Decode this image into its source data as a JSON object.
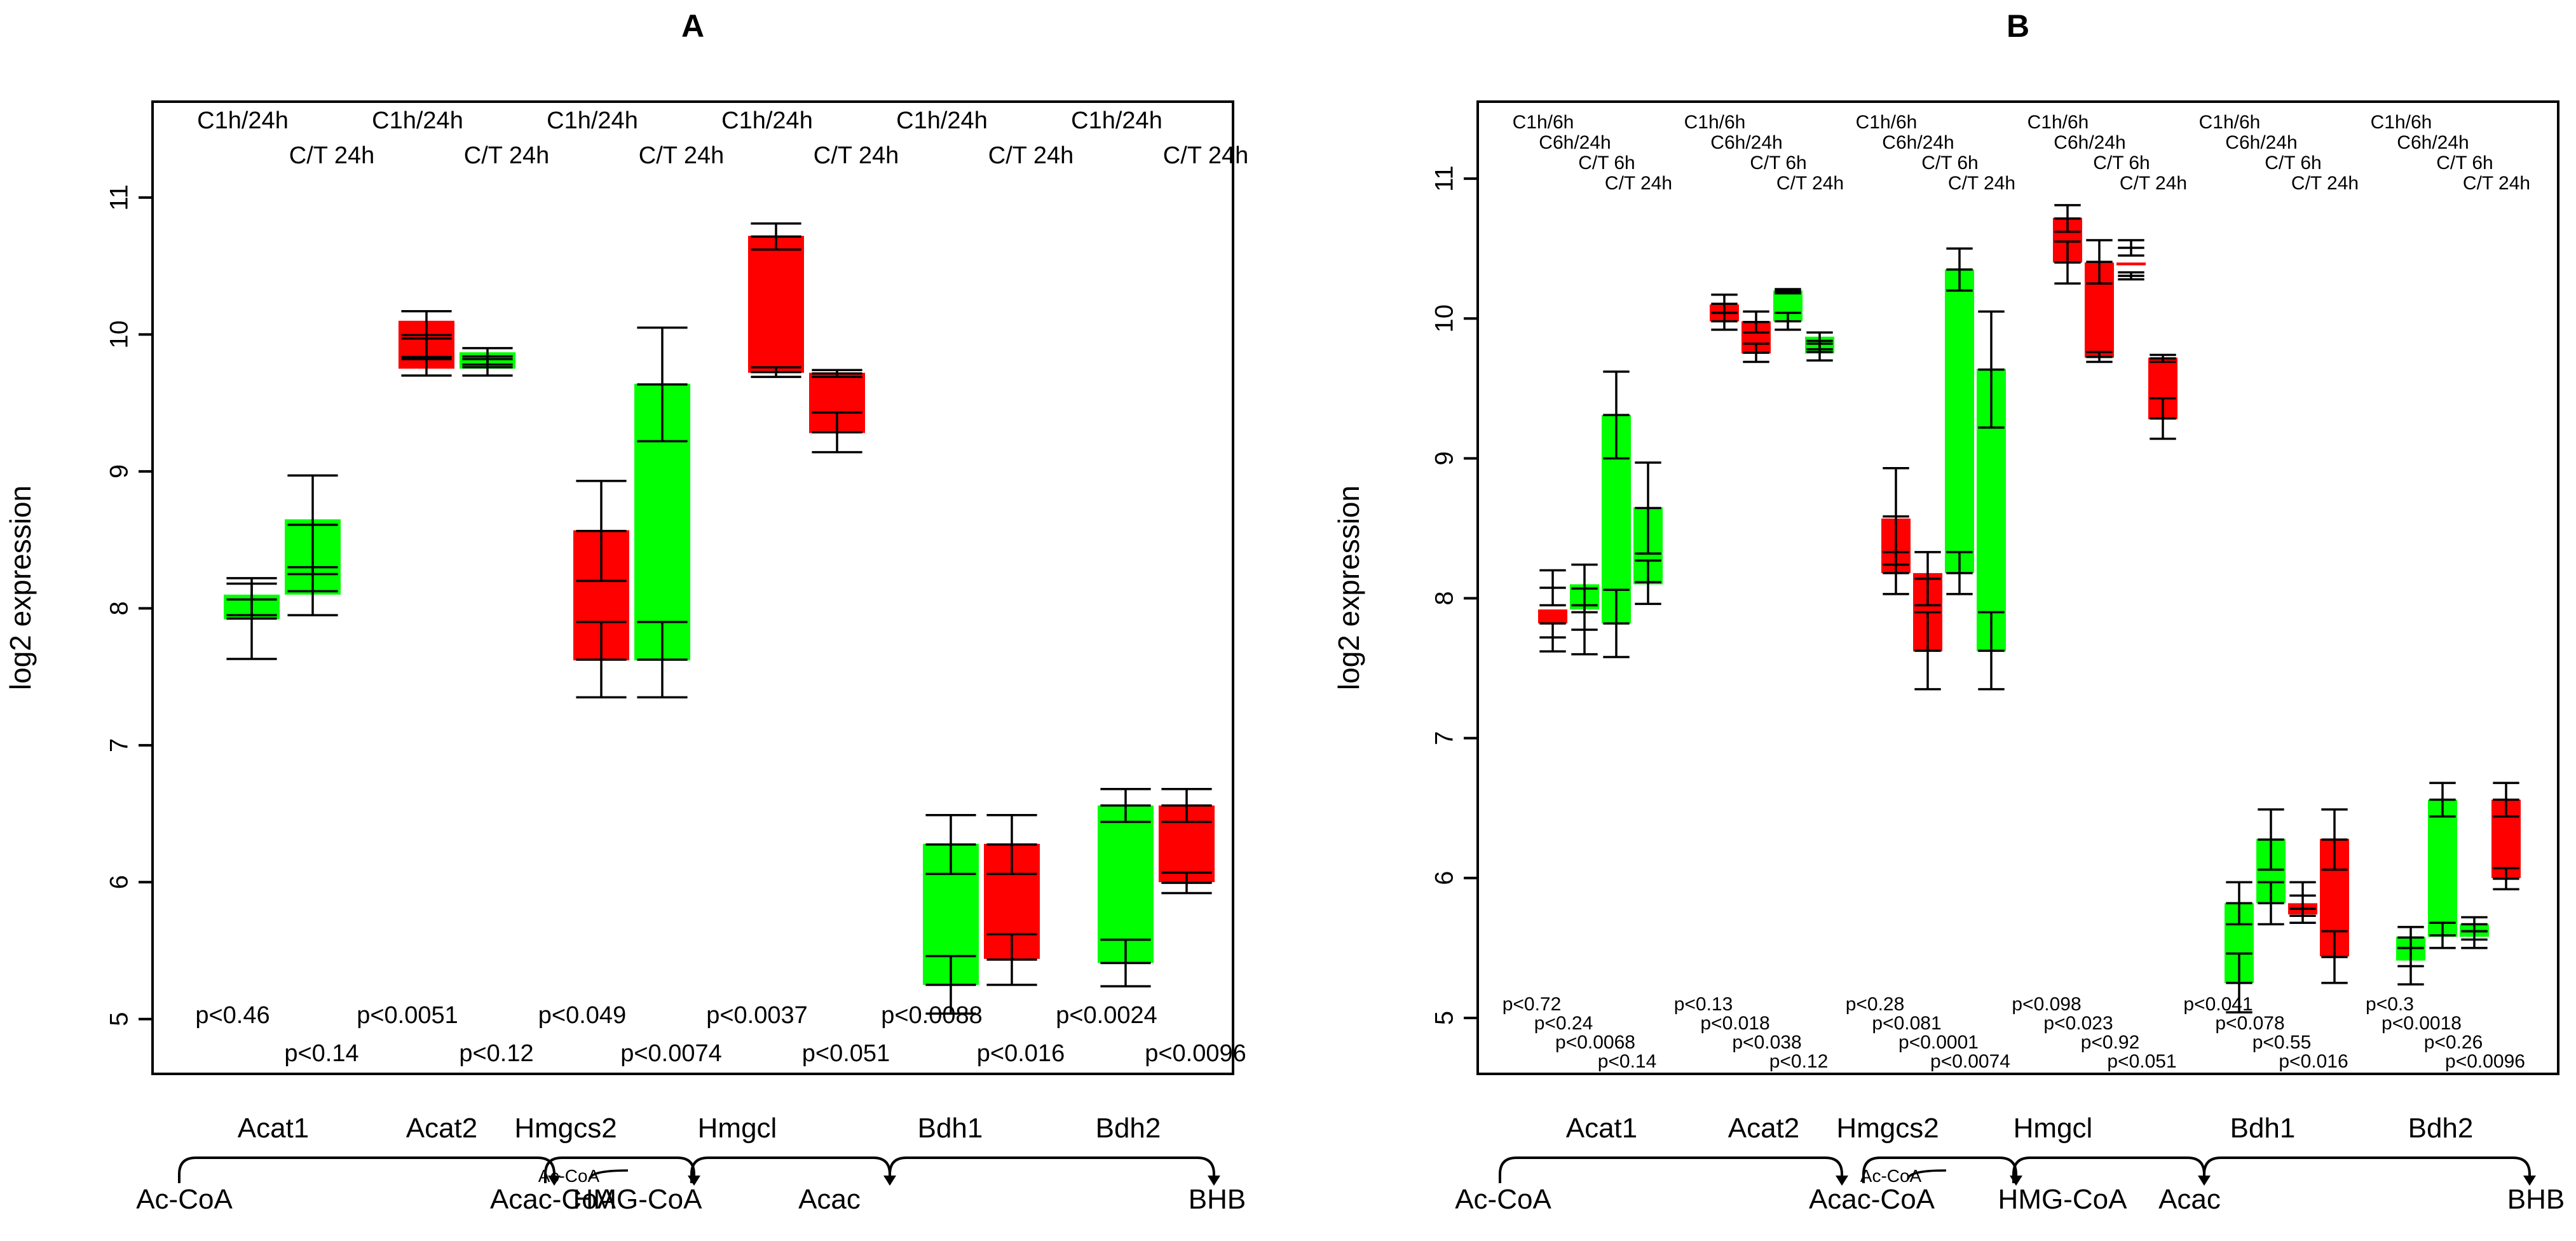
{
  "colors": {
    "up": "#ff0000",
    "down": "#00ff00",
    "ink": "#000000",
    "background": "#ffffff"
  },
  "chart_data": [
    {
      "type": "floating-bar",
      "title": "A",
      "ylabel": "log2 expression",
      "ylim": [
        4.6,
        11.7
      ],
      "yticks": [
        5,
        6,
        7,
        8,
        9,
        10,
        11
      ],
      "group_top_labels": [
        "C1h/24h",
        "C/T 24h"
      ],
      "genes": [
        "Acat1",
        "Acat2",
        "Hmgcs2",
        "Hmgcl",
        "Bdh1",
        "Bdh2"
      ],
      "groups": [
        {
          "gene": "Acat1",
          "bars": [
            {
              "label": "C1h/24h",
              "p": "p<0.46",
              "low": 7.92,
              "high": 8.1,
              "color": "down",
              "err_a": [
                7.63,
                8.22
              ],
              "err_b": [
                7.95,
                8.18
              ]
            },
            {
              "label": "C/T 24h",
              "p": "p<0.14",
              "low": 8.1,
              "high": 8.65,
              "color": "down",
              "err_a": [
                7.95,
                8.3
              ],
              "err_b": [
                8.25,
                8.97
              ]
            }
          ]
        },
        {
          "gene": "Acat2",
          "bars": [
            {
              "label": "C1h/24h",
              "p": "p<0.0051",
              "low": 9.75,
              "high": 10.1,
              "color": "up",
              "err_a": [
                9.7,
                9.97
              ],
              "err_b": [
                9.82,
                10.17
              ]
            },
            {
              "label": "C/T 24h",
              "p": "p<0.12",
              "low": 9.75,
              "high": 9.87,
              "color": "down",
              "err_a": [
                9.7,
                9.82
              ],
              "err_b": [
                9.78,
                9.9
              ]
            }
          ]
        },
        {
          "gene": "Hmgcs2",
          "bars": [
            {
              "label": "C1h/24h",
              "p": "p<0.049",
              "low": 7.62,
              "high": 8.57,
              "color": "up",
              "err_a": [
                7.35,
                7.9
              ],
              "err_b": [
                8.2,
                8.93
              ]
            },
            {
              "label": "C/T 24h",
              "p": "p<0.0074",
              "low": 7.62,
              "high": 9.64,
              "color": "down",
              "err_a": [
                7.35,
                7.9
              ],
              "err_b": [
                9.22,
                10.05
              ]
            }
          ]
        },
        {
          "gene": "Hmgcl",
          "bars": [
            {
              "label": "C1h/24h",
              "p": "p<0.0037",
              "low": 9.72,
              "high": 10.72,
              "color": "up",
              "err_a": [
                9.69,
                9.76
              ],
              "err_b": [
                10.62,
                10.81
              ]
            },
            {
              "label": "C/T 24h",
              "p": "p<0.051",
              "low": 9.28,
              "high": 9.72,
              "color": "up",
              "err_a": [
                9.14,
                9.43
              ],
              "err_b": [
                9.69,
                9.74
              ]
            }
          ]
        },
        {
          "gene": "Bdh1",
          "bars": [
            {
              "label": "C1h/24h",
              "p": "p<0.0088",
              "low": 5.25,
              "high": 6.28,
              "color": "down",
              "err_a": [
                5.04,
                5.46
              ],
              "err_b": [
                6.06,
                6.49
              ]
            },
            {
              "label": "C/T 24h",
              "p": "p<0.016",
              "low": 5.44,
              "high": 6.28,
              "color": "up",
              "err_a": [
                5.25,
                5.62
              ],
              "err_b": [
                6.06,
                6.49
              ]
            }
          ]
        },
        {
          "gene": "Bdh2",
          "bars": [
            {
              "label": "C1h/24h",
              "p": "p<0.0024",
              "low": 5.41,
              "high": 6.56,
              "color": "down",
              "err_a": [
                5.24,
                5.58
              ],
              "err_b": [
                6.44,
                6.68
              ]
            },
            {
              "label": "C/T 24h",
              "p": "p<0.0096",
              "low": 6.0,
              "high": 6.56,
              "color": "up",
              "err_a": [
                5.92,
                6.07
              ],
              "err_b": [
                6.44,
                6.68
              ]
            }
          ]
        }
      ]
    },
    {
      "type": "floating-bar",
      "title": "B",
      "ylabel": "log2 expression",
      "ylim": [
        4.6,
        11.55
      ],
      "yticks": [
        5,
        6,
        7,
        8,
        9,
        10,
        11
      ],
      "group_top_labels": [
        "C1h/6h",
        "C6h/24h",
        "C/T 6h",
        "C/T 24h"
      ],
      "genes": [
        "Acat1",
        "Acat2",
        "Hmgcs2",
        "Hmgcl",
        "Bdh1",
        "Bdh2"
      ],
      "groups": [
        {
          "gene": "Acat1",
          "bars": [
            {
              "label": "C1h/6h",
              "p": "p<0.72",
              "low": 7.82,
              "high": 7.92,
              "color": "up",
              "err_a": [
                7.62,
                7.82
              ],
              "err_b": [
                7.95,
                8.2
              ]
            },
            {
              "label": "C6h/24h",
              "p": "p<0.24",
              "low": 7.92,
              "high": 8.1,
              "color": "down",
              "err_a": [
                7.6,
                7.95
              ],
              "err_b": [
                7.9,
                8.24
              ]
            },
            {
              "label": "C/T 6h",
              "p": "p<0.0068",
              "low": 7.82,
              "high": 9.31,
              "color": "down",
              "err_a": [
                7.58,
                8.06
              ],
              "err_b": [
                9.0,
                9.62
              ]
            },
            {
              "label": "C/T 24h",
              "p": "p<0.14",
              "low": 8.1,
              "high": 8.65,
              "color": "down",
              "err_a": [
                7.96,
                8.27
              ],
              "err_b": [
                8.32,
                8.97
              ]
            }
          ]
        },
        {
          "gene": "Acat2",
          "bars": [
            {
              "label": "C1h/6h",
              "p": "p<0.13",
              "low": 9.98,
              "high": 10.1,
              "color": "up",
              "err_a": [
                9.92,
                10.04
              ],
              "err_b": [
                10.04,
                10.17
              ]
            },
            {
              "label": "C6h/24h",
              "p": "p<0.018",
              "low": 9.75,
              "high": 9.98,
              "color": "up",
              "err_a": [
                9.69,
                9.82
              ],
              "err_b": [
                9.9,
                10.05
              ]
            },
            {
              "label": "C/T 6h",
              "p": "p<0.038",
              "low": 9.98,
              "high": 10.2,
              "color": "down",
              "err_a": [
                9.92,
                10.04
              ],
              "err_b": [
                10.18,
                10.21
              ]
            },
            {
              "label": "C/T 24h",
              "p": "p<0.12",
              "low": 9.75,
              "high": 9.87,
              "color": "down",
              "err_a": [
                9.7,
                9.82
              ],
              "err_b": [
                9.78,
                9.9
              ]
            }
          ]
        },
        {
          "gene": "Hmgcs2",
          "bars": [
            {
              "label": "C1h/6h",
              "p": "p<0.28",
              "low": 8.18,
              "high": 8.57,
              "color": "up",
              "err_a": [
                8.03,
                8.33
              ],
              "err_b": [
                8.24,
                8.93
              ]
            },
            {
              "label": "C6h/24h",
              "p": "p<0.081",
              "low": 7.62,
              "high": 8.18,
              "color": "up",
              "err_a": [
                7.35,
                7.9
              ],
              "err_b": [
                7.95,
                8.33
              ]
            },
            {
              "label": "C/T 6h",
              "p": "p<0.0001",
              "low": 8.18,
              "high": 10.35,
              "color": "down",
              "err_a": [
                8.03,
                8.33
              ],
              "err_b": [
                10.2,
                10.5
              ]
            },
            {
              "label": "C/T 24h",
              "p": "p<0.0074",
              "low": 7.62,
              "high": 9.64,
              "color": "down",
              "err_a": [
                7.35,
                7.9
              ],
              "err_b": [
                9.22,
                10.05
              ]
            }
          ]
        },
        {
          "gene": "Hmgcl",
          "bars": [
            {
              "label": "C1h/6h",
              "p": "p<0.098",
              "low": 10.4,
              "high": 10.72,
              "color": "up",
              "err_a": [
                10.25,
                10.55
              ],
              "err_b": [
                10.62,
                10.81
              ]
            },
            {
              "label": "C6h/24h",
              "p": "p<0.023",
              "low": 9.72,
              "high": 10.4,
              "color": "up",
              "err_a": [
                9.69,
                9.76
              ],
              "err_b": [
                10.25,
                10.56
              ]
            },
            {
              "label": "C/T 6h",
              "p": "p<0.92",
              "low": 10.38,
              "high": 10.4,
              "color": "up",
              "err_a": [
                10.28,
                10.33
              ],
              "err_b": [
                10.45,
                10.56
              ]
            },
            {
              "label": "C/T 24h",
              "p": "p<0.051",
              "low": 9.28,
              "high": 9.72,
              "color": "up",
              "err_a": [
                9.14,
                9.43
              ],
              "err_b": [
                9.69,
                9.74
              ]
            }
          ]
        },
        {
          "gene": "Bdh1",
          "bars": [
            {
              "label": "C1h/6h",
              "p": "p<0.041",
              "low": 5.25,
              "high": 5.82,
              "color": "down",
              "err_a": [
                5.04,
                5.46
              ],
              "err_b": [
                5.67,
                5.97
              ]
            },
            {
              "label": "C6h/24h",
              "p": "p<0.078",
              "low": 5.82,
              "high": 6.28,
              "color": "down",
              "err_a": [
                5.67,
                5.97
              ],
              "err_b": [
                6.06,
                6.49
              ]
            },
            {
              "label": "C/T 6h",
              "p": "p<0.55",
              "low": 5.74,
              "high": 5.82,
              "color": "up",
              "err_a": [
                5.68,
                5.78
              ],
              "err_b": [
                5.78,
                5.97
              ]
            },
            {
              "label": "C/T 24h",
              "p": "p<0.016",
              "low": 5.44,
              "high": 6.28,
              "color": "up",
              "err_a": [
                5.25,
                5.62
              ],
              "err_b": [
                6.06,
                6.49
              ]
            }
          ]
        },
        {
          "gene": "Bdh2",
          "bars": [
            {
              "label": "C1h/6h",
              "p": "p<0.3",
              "low": 5.41,
              "high": 5.58,
              "color": "down",
              "err_a": [
                5.24,
                5.5
              ],
              "err_b": [
                5.5,
                5.65
              ]
            },
            {
              "label": "C6h/24h",
              "p": "p<0.0018",
              "low": 5.58,
              "high": 6.56,
              "color": "down",
              "err_a": [
                5.5,
                5.68
              ],
              "err_b": [
                6.44,
                6.68
              ]
            },
            {
              "label": "C/T 6h",
              "p": "p<0.26",
              "low": 5.58,
              "high": 5.67,
              "color": "down",
              "err_a": [
                5.5,
                5.62
              ],
              "err_b": [
                5.62,
                5.72
              ]
            },
            {
              "label": "C/T 24h",
              "p": "p<0.0096",
              "low": 6.0,
              "high": 6.56,
              "color": "up",
              "err_a": [
                5.92,
                6.07
              ],
              "err_b": [
                6.44,
                6.68
              ]
            }
          ]
        }
      ]
    }
  ],
  "pathway": {
    "metabolites": [
      "Ac-CoA",
      "Acac-CoA",
      "HMG-CoA",
      "Acac",
      "BHB"
    ],
    "enzymes": [
      "Acat1",
      "Acat2",
      "Hmgcs2",
      "Hmgcl",
      "Bdh1",
      "Bdh2"
    ],
    "cofactor": "Ac-CoA"
  }
}
